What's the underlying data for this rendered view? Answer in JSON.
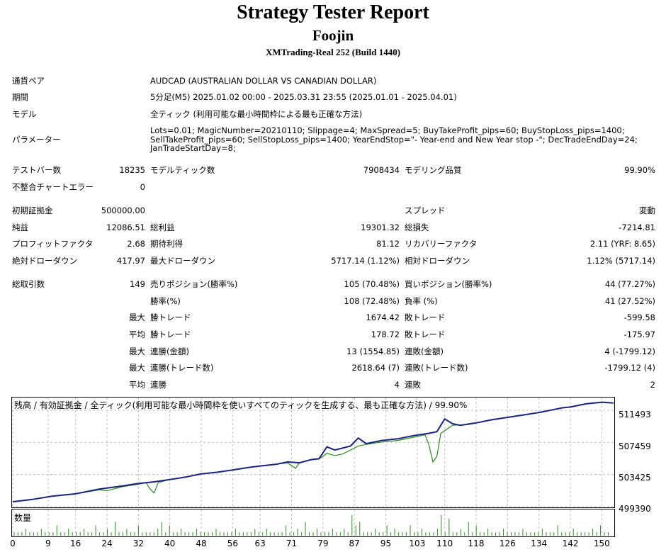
{
  "header": {
    "title": "Strategy Tester Report",
    "ea_name": "Foojin",
    "broker": "XMTrading-Real 252 (Build 1440)"
  },
  "info": {
    "symbol_label": "通貨ペア",
    "symbol_value": "AUDCAD (AUSTRALIAN DOLLAR VS CANADIAN DOLLAR)",
    "period_label": "期間",
    "period_value": "5分足(M5) 2025.01.02 00:00 - 2025.03.31 23:55 (2025.01.01 - 2025.04.01)",
    "model_label": "モデル",
    "model_value": "全ティック (利用可能な最小時間枠による最も正確な方法)",
    "params_label": "パラメーター",
    "params_lines": [
      "Lots=0.01; MagicNumber=20210110; Slippage=4; MaxSpread=5; BuyTakeProfit_pips=60; BuyStopLoss_pips=1400;",
      "SellTakeProfit_pips=60; SellStopLoss_pips=1400; YearEndStop=\"- Year-end and New Year stop -\"; DecTradeEndDay=24;",
      "JanTradeStartDay=8;"
    ]
  },
  "stats": {
    "bars_label": "テストバー数",
    "bars_value": "18235",
    "ticks_label": "モデルティック数",
    "ticks_value": "7908434",
    "quality_label": "モデリング品質",
    "quality_value": "99.90%",
    "mismatch_label": "不整合チャートエラー",
    "mismatch_value": "0",
    "deposit_label": "初期証拠金",
    "deposit_value": "500000.00",
    "spread_label": "スプレッド",
    "spread_value": "変動",
    "net_label": "純益",
    "net_value": "12086.51",
    "gross_profit_label": "総利益",
    "gross_profit_value": "19301.32",
    "gross_loss_label": "総損失",
    "gross_loss_value": "-7214.81",
    "pf_label": "プロフィットファクタ",
    "pf_value": "2.68",
    "expected_label": "期待利得",
    "expected_value": "81.12",
    "recovery_label": "リカバリーファクタ",
    "recovery_value": "2.11 (YRF: 8.65)",
    "abs_dd_label": "絶対ドローダウン",
    "abs_dd_value": "417.97",
    "max_dd_label": "最大ドローダウン",
    "max_dd_value": "5717.14 (1.12%)",
    "rel_dd_label": "相対ドローダウン",
    "rel_dd_value": "1.12% (5717.14)",
    "trades_label": "総取引数",
    "trades_value": "149",
    "short_label": "売りポジション(勝率%)",
    "short_value": "105 (70.48%)",
    "long_label": "買いポジション(勝率%)",
    "long_value": "44 (77.27%)",
    "winrate_label": "勝率(%)",
    "winrate_value": "108 (72.48%)",
    "lossrate_label": "負率 (%)",
    "lossrate_value": "41 (27.52%)",
    "max_label": "最大",
    "avg_label": "平均",
    "largest_win_label": "勝トレード",
    "largest_win_value": "1674.42",
    "largest_loss_label": "敗トレード",
    "largest_loss_value": "-599.58",
    "avg_win_label": "勝トレード",
    "avg_win_value": "178.72",
    "avg_loss_label": "敗トレード",
    "avg_loss_value": "-175.97",
    "max_consec_win_money_label": "連勝(金額)",
    "max_consec_win_money_value": "13 (1554.85)",
    "max_consec_loss_money_label": "連敗(金額)",
    "max_consec_loss_money_value": "4 (-1799.12)",
    "max_consec_win_trades_label": "連勝(トレード数)",
    "max_consec_win_trades_value": "2618.64 (7)",
    "max_consec_loss_trades_label": "連敗(トレード数)",
    "max_consec_loss_trades_value": "-1799.12 (4)",
    "avg_consec_win_label": "連勝",
    "avg_consec_win_value": "4",
    "avg_consec_loss_label": "連敗",
    "avg_consec_loss_value": "2"
  },
  "colors": {
    "balance": "#1a237e",
    "equity": "#2e8b22",
    "volume": "#2e8b22",
    "grid": "#c0c0c0"
  },
  "chart_data": {
    "type": "line",
    "legend": {
      "balance": "残高",
      "sep1": " / ",
      "equity": "有効証拠金",
      "sep2": " / 全ティック(利用可能な最小時間枠を使いすべてのティックを生成する、最も正確な方法) / 99.90%"
    },
    "y_ticks": [
      "511493",
      "507459",
      "503425",
      "499390"
    ],
    "ylim": [
      499390,
      513000
    ],
    "x_ticks": [
      "0",
      "9",
      "16",
      "24",
      "32",
      "40",
      "48",
      "56",
      "63",
      "71",
      "79",
      "87",
      "95",
      "103",
      "110",
      "118",
      "126",
      "134",
      "142",
      "150"
    ],
    "xlim": [
      0,
      153
    ],
    "balance": [
      [
        0,
        500000
      ],
      [
        5,
        500300
      ],
      [
        10,
        500700
      ],
      [
        16,
        501000
      ],
      [
        22,
        501600
      ],
      [
        28,
        502000
      ],
      [
        32,
        502300
      ],
      [
        36,
        502500
      ],
      [
        40,
        502800
      ],
      [
        44,
        503100
      ],
      [
        48,
        503500
      ],
      [
        52,
        503700
      ],
      [
        56,
        504000
      ],
      [
        60,
        504300
      ],
      [
        63,
        504500
      ],
      [
        67,
        504700
      ],
      [
        70,
        505000
      ],
      [
        73,
        504900
      ],
      [
        76,
        505300
      ],
      [
        78,
        505400
      ],
      [
        80,
        506900
      ],
      [
        82,
        506500
      ],
      [
        86,
        507000
      ],
      [
        88,
        508000
      ],
      [
        90,
        507300
      ],
      [
        94,
        507700
      ],
      [
        98,
        507900
      ],
      [
        102,
        508300
      ],
      [
        106,
        508600
      ],
      [
        108,
        508800
      ],
      [
        110,
        510400
      ],
      [
        112,
        509800
      ],
      [
        114,
        509600
      ],
      [
        118,
        509900
      ],
      [
        122,
        510300
      ],
      [
        126,
        510600
      ],
      [
        130,
        510900
      ],
      [
        134,
        511200
      ],
      [
        138,
        511600
      ],
      [
        140,
        511800
      ],
      [
        142,
        511900
      ],
      [
        146,
        512300
      ],
      [
        150,
        512500
      ],
      [
        153,
        512400
      ]
    ],
    "equity": [
      [
        0,
        500000
      ],
      [
        5,
        500300
      ],
      [
        10,
        500700
      ],
      [
        16,
        501000
      ],
      [
        22,
        501500
      ],
      [
        24,
        501400
      ],
      [
        28,
        501900
      ],
      [
        32,
        502200
      ],
      [
        34,
        502400
      ],
      [
        35,
        501600
      ],
      [
        36,
        501100
      ],
      [
        37,
        502400
      ],
      [
        40,
        502800
      ],
      [
        44,
        503100
      ],
      [
        48,
        503500
      ],
      [
        52,
        503700
      ],
      [
        56,
        504000
      ],
      [
        60,
        504300
      ],
      [
        63,
        504500
      ],
      [
        67,
        504700
      ],
      [
        70,
        504900
      ],
      [
        72,
        504200
      ],
      [
        73,
        504900
      ],
      [
        76,
        505300
      ],
      [
        78,
        505400
      ],
      [
        79,
        505700
      ],
      [
        80,
        506100
      ],
      [
        82,
        505800
      ],
      [
        84,
        506000
      ],
      [
        88,
        507000
      ],
      [
        90,
        507200
      ],
      [
        94,
        507500
      ],
      [
        98,
        507700
      ],
      [
        102,
        508100
      ],
      [
        105,
        508400
      ],
      [
        106,
        507100
      ],
      [
        107,
        505000
      ],
      [
        108,
        505700
      ],
      [
        109,
        508600
      ],
      [
        112,
        509600
      ],
      [
        116,
        509700
      ],
      [
        118,
        509900
      ],
      [
        122,
        510300
      ],
      [
        126,
        510600
      ],
      [
        130,
        510900
      ],
      [
        134,
        511200
      ],
      [
        138,
        511600
      ],
      [
        140,
        511800
      ],
      [
        142,
        511900
      ],
      [
        146,
        512300
      ],
      [
        150,
        512500
      ],
      [
        153,
        512400
      ]
    ],
    "volume_label": "数量",
    "volume": [
      1,
      1,
      1,
      2,
      1,
      1,
      1,
      2,
      1,
      1,
      1,
      3,
      1,
      1,
      2,
      1,
      1,
      1,
      2,
      1,
      1,
      3,
      1,
      1,
      2,
      1,
      4,
      1,
      1,
      2,
      1,
      1,
      3,
      1,
      1,
      1,
      1,
      2,
      4,
      1,
      3,
      1,
      1,
      2,
      1,
      1,
      1,
      2,
      1,
      1,
      1,
      1,
      2,
      1,
      1,
      1,
      1,
      2,
      1,
      1,
      1,
      1,
      2,
      1,
      1,
      2,
      1,
      1,
      1,
      1,
      3,
      1,
      1,
      2,
      1,
      4,
      1,
      1,
      2,
      1,
      1,
      1,
      2,
      1,
      1,
      2,
      1,
      6,
      3,
      4,
      1,
      1,
      1,
      2,
      1,
      1,
      3,
      1,
      2,
      1,
      1,
      1,
      3,
      1,
      1,
      2,
      1,
      1,
      1,
      2,
      6,
      1,
      5,
      1,
      1,
      2,
      1,
      4,
      1,
      3,
      1,
      1,
      2,
      1,
      1,
      1,
      2,
      1,
      1,
      1,
      1,
      2,
      1,
      1,
      1,
      1,
      2,
      1,
      1,
      1,
      3,
      1,
      1,
      1,
      2,
      1,
      1,
      1,
      1,
      2,
      1,
      3,
      1,
      1
    ]
  }
}
